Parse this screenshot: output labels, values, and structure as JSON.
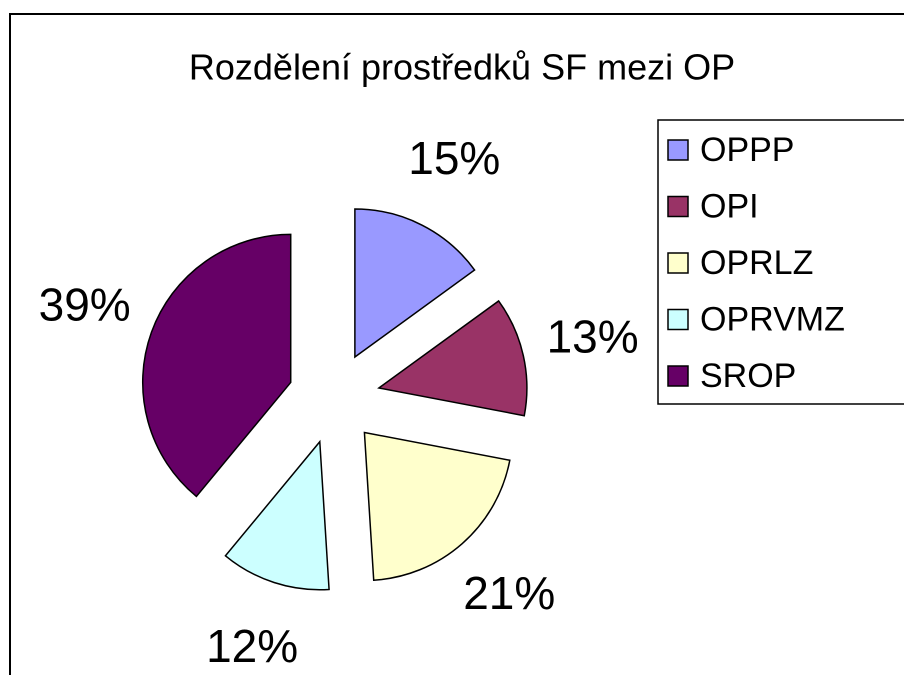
{
  "chart_data": {
    "type": "pie",
    "title": "Rozdělení prostředků SF mezi OP",
    "categories": [
      "OPPP",
      "OPI",
      "OPRLZ",
      "OPRVMZ",
      "SROP"
    ],
    "values": [
      15,
      13,
      21,
      12,
      39
    ],
    "value_labels": [
      "15%",
      "13%",
      "21%",
      "12%",
      "39%"
    ],
    "colors": [
      "#9999ff",
      "#993366",
      "#ffffcc",
      "#ccffff",
      "#660066"
    ]
  }
}
